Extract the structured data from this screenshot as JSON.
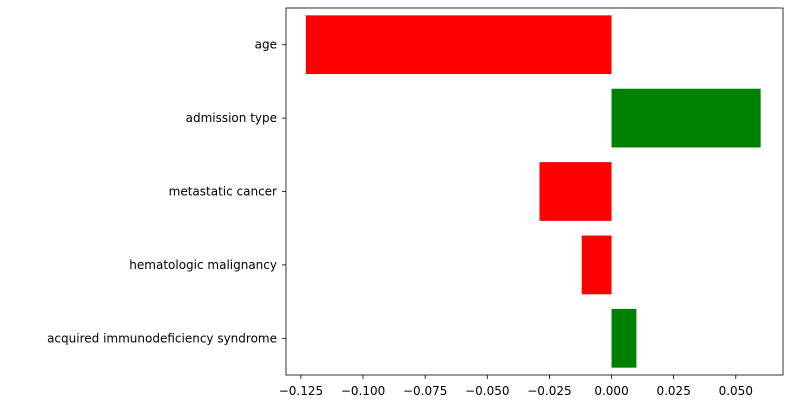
{
  "chart_data": {
    "type": "bar",
    "orientation": "horizontal",
    "title": "",
    "xlabel": "",
    "ylabel": "",
    "categories": [
      "age",
      "admission type",
      "metastatic cancer",
      "hematologic malignancy",
      "acquired immunodeficiency syndrome"
    ],
    "values": [
      -0.123,
      0.06,
      -0.029,
      -0.012,
      0.01
    ],
    "xlim": [
      -0.131,
      0.069
    ],
    "xticks": [
      -0.125,
      -0.1,
      -0.075,
      -0.05,
      -0.025,
      0.0,
      0.025,
      0.05
    ],
    "xtick_labels": [
      "−0.125",
      "−0.100",
      "−0.075",
      "−0.050",
      "−0.025",
      "0.000",
      "0.025",
      "0.050"
    ],
    "grid": false,
    "colors": {
      "positive": "#008000",
      "negative": "#ff0000"
    }
  }
}
